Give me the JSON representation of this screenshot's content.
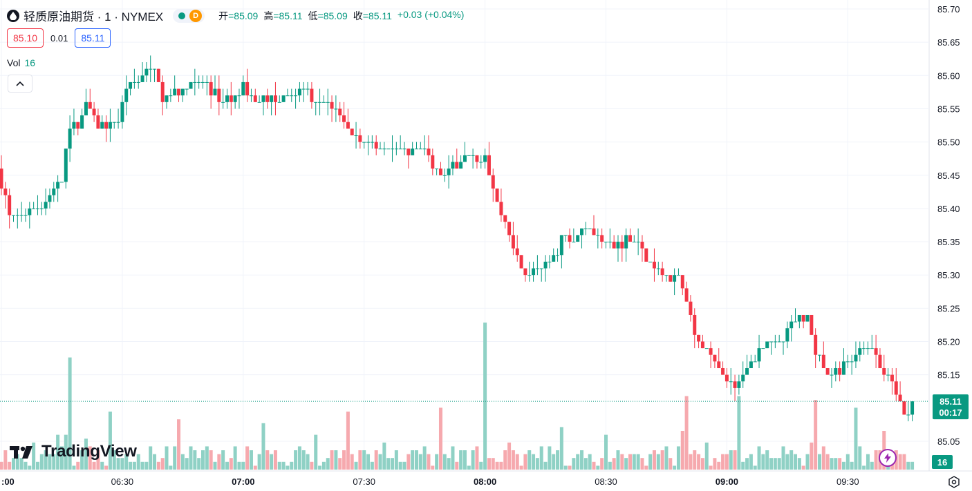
{
  "header": {
    "title": "轻质原油期货 · 1 · NYMEX",
    "delay_badge": "D",
    "ohlc": [
      {
        "label": "开",
        "value": "=85.09"
      },
      {
        "label": "高",
        "value": "=85.11"
      },
      {
        "label": "低",
        "value": "=85.09"
      },
      {
        "label": "收",
        "value": "=85.11"
      }
    ],
    "change": "+0.03 (+0.04%)",
    "bid": "85.10",
    "spread": "0.01",
    "ask": "85.11",
    "volume_label": "Vol",
    "volume_value": "16"
  },
  "branding": {
    "logo_text": "TradingView"
  },
  "colors": {
    "up": "#089981",
    "down": "#f23645",
    "vol_up": "#8fd1c5",
    "vol_down": "#f6a9ae",
    "accent": "#2962ff"
  },
  "icons": {
    "symbol": "oil-drop-icon",
    "collapse": "chevron-up-icon",
    "lightning": "lightning-icon",
    "settings": "gear-icon"
  },
  "chart_data": {
    "type": "candlestick",
    "interval": "1 minute",
    "ylim": [
      85.0,
      85.72
    ],
    "y_ticks": [
      "85.70",
      "85.65",
      "85.60",
      "85.55",
      "85.50",
      "85.45",
      "85.40",
      "85.35",
      "85.30",
      "85.25",
      "85.20",
      "85.15",
      "85.05"
    ],
    "x_ticks": [
      {
        "t": 0,
        "label": ":00",
        "bold": true
      },
      {
        "t": 30,
        "label": "06:30",
        "bold": false
      },
      {
        "t": 60,
        "label": "07:00",
        "bold": true
      },
      {
        "t": 90,
        "label": "07:30",
        "bold": false
      },
      {
        "t": 120,
        "label": "08:00",
        "bold": true
      },
      {
        "t": 150,
        "label": "08:30",
        "bold": false
      },
      {
        "t": 180,
        "label": "09:00",
        "bold": true
      },
      {
        "t": 210,
        "label": "09:30",
        "bold": false
      }
    ],
    "last_price": {
      "value": "85.11",
      "countdown": "00:17"
    },
    "last_volume": "16",
    "anchors": [
      [
        0,
        85.44
      ],
      [
        2,
        85.39
      ],
      [
        5,
        85.39
      ],
      [
        8,
        85.4
      ],
      [
        11,
        85.41
      ],
      [
        13,
        85.43
      ],
      [
        15,
        85.45
      ],
      [
        17,
        85.52
      ],
      [
        19,
        85.53
      ],
      [
        21,
        85.56
      ],
      [
        24,
        85.52
      ],
      [
        27,
        85.53
      ],
      [
        29,
        85.53
      ],
      [
        31,
        85.58
      ],
      [
        33,
        85.59
      ],
      [
        36,
        85.61
      ],
      [
        38,
        85.61
      ],
      [
        40,
        85.57
      ],
      [
        42,
        85.57
      ],
      [
        45,
        85.58
      ],
      [
        47,
        85.59
      ],
      [
        50,
        85.59
      ],
      [
        52,
        85.58
      ],
      [
        55,
        85.56
      ],
      [
        58,
        85.57
      ],
      [
        60,
        85.58
      ],
      [
        63,
        85.56
      ],
      [
        66,
        85.57
      ],
      [
        69,
        85.56
      ],
      [
        72,
        85.57
      ],
      [
        74,
        85.58
      ],
      [
        77,
        85.57
      ],
      [
        80,
        85.56
      ],
      [
        83,
        85.55
      ],
      [
        85,
        85.53
      ],
      [
        87,
        85.51
      ],
      [
        90,
        85.5
      ],
      [
        92,
        85.5
      ],
      [
        95,
        85.49
      ],
      [
        98,
        85.49
      ],
      [
        101,
        85.48
      ],
      [
        105,
        85.49
      ],
      [
        107,
        85.46
      ],
      [
        109,
        85.45
      ],
      [
        112,
        85.46
      ],
      [
        115,
        85.48
      ],
      [
        118,
        85.48
      ],
      [
        120,
        85.47
      ],
      [
        122,
        85.43
      ],
      [
        124,
        85.39
      ],
      [
        126,
        85.36
      ],
      [
        128,
        85.33
      ],
      [
        130,
        85.3
      ],
      [
        132,
        85.31
      ],
      [
        134,
        85.31
      ],
      [
        136,
        85.32
      ],
      [
        138,
        85.34
      ],
      [
        140,
        85.36
      ],
      [
        142,
        85.35
      ],
      [
        144,
        85.37
      ],
      [
        146,
        85.37
      ],
      [
        148,
        85.36
      ],
      [
        150,
        85.35
      ],
      [
        152,
        85.34
      ],
      [
        154,
        85.35
      ],
      [
        156,
        85.36
      ],
      [
        158,
        85.35
      ],
      [
        160,
        85.33
      ],
      [
        162,
        85.31
      ],
      [
        165,
        85.3
      ],
      [
        168,
        85.3
      ],
      [
        170,
        85.26
      ],
      [
        172,
        85.21
      ],
      [
        174,
        85.19
      ],
      [
        176,
        85.18
      ],
      [
        178,
        85.16
      ],
      [
        180,
        85.14
      ],
      [
        182,
        85.13
      ],
      [
        184,
        85.15
      ],
      [
        186,
        85.17
      ],
      [
        188,
        85.19
      ],
      [
        190,
        85.19
      ],
      [
        192,
        85.2
      ],
      [
        194,
        85.2
      ],
      [
        196,
        85.23
      ],
      [
        198,
        85.23
      ],
      [
        200,
        85.24
      ],
      [
        202,
        85.18
      ],
      [
        204,
        85.16
      ],
      [
        206,
        85.15
      ],
      [
        208,
        85.16
      ],
      [
        210,
        85.17
      ],
      [
        212,
        85.18
      ],
      [
        214,
        85.19
      ],
      [
        216,
        85.19
      ],
      [
        218,
        85.16
      ],
      [
        220,
        85.15
      ],
      [
        222,
        85.12
      ],
      [
        224,
        85.09
      ],
      [
        226,
        85.11
      ]
    ],
    "volume_peaks": [
      [
        17,
        29
      ],
      [
        27,
        15
      ],
      [
        44,
        13
      ],
      [
        65,
        12
      ],
      [
        86,
        15
      ],
      [
        109,
        16
      ],
      [
        120,
        38
      ],
      [
        139,
        11
      ],
      [
        170,
        19
      ],
      [
        183,
        19
      ],
      [
        202,
        18
      ],
      [
        212,
        16
      ]
    ]
  }
}
